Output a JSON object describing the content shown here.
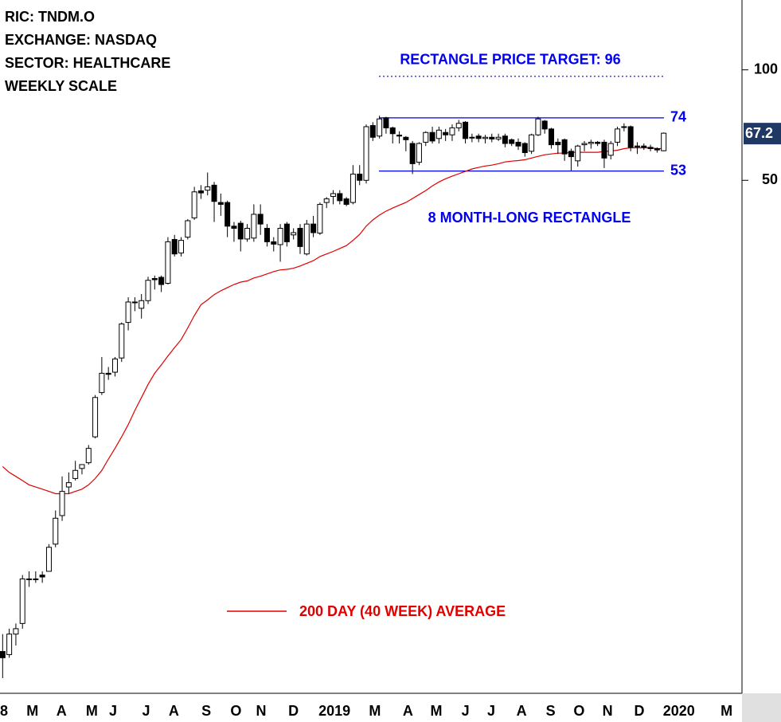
{
  "chart_data": {
    "type": "candlestick",
    "annotations": [
      "RIC: TNDM.O",
      "EXCHANGE: NASDAQ",
      "SECTOR: HEALTHCARE",
      "WEEKLY SCALE"
    ],
    "pattern_label": "8 MONTH-LONG RECTANGLE",
    "target": {
      "value": 96,
      "label": "RECTANGLE PRICE TARGET: 96"
    },
    "levels": [
      74,
      53
    ],
    "level_color": "#0000ee",
    "last_price": 67.2,
    "log_scale": true,
    "ylim": [
      2,
      155
    ],
    "yticks": [
      50,
      100
    ],
    "xlim": [
      3.6,
      115.6
    ],
    "xticks": [
      {
        "value": 4.2,
        "label": "8"
      },
      {
        "value": 8.5,
        "label": "M"
      },
      {
        "value": 12.9,
        "label": "A"
      },
      {
        "value": 17.5,
        "label": "M"
      },
      {
        "value": 20.7,
        "label": "J"
      },
      {
        "value": 25.7,
        "label": "J"
      },
      {
        "value": 29.9,
        "label": "A"
      },
      {
        "value": 34.8,
        "label": "S"
      },
      {
        "value": 39.3,
        "label": "O"
      },
      {
        "value": 43.1,
        "label": "N"
      },
      {
        "value": 48,
        "label": "D"
      },
      {
        "value": 54.2,
        "label": "2019"
      },
      {
        "value": 60.3,
        "label": "M"
      },
      {
        "value": 65.3,
        "label": "A"
      },
      {
        "value": 69.6,
        "label": "M"
      },
      {
        "value": 74,
        "label": "J"
      },
      {
        "value": 77.9,
        "label": "J"
      },
      {
        "value": 82.5,
        "label": "A"
      },
      {
        "value": 86.9,
        "label": "S"
      },
      {
        "value": 91.2,
        "label": "O"
      },
      {
        "value": 95.5,
        "label": "N"
      },
      {
        "value": 100.3,
        "label": "D"
      },
      {
        "value": 106.3,
        "label": "2020"
      },
      {
        "value": 113.5,
        "label": "M"
      }
    ],
    "up_color": "#ffffff",
    "down_color": "#000000",
    "x": [
      4,
      5,
      6,
      7,
      8,
      9,
      10,
      11,
      12,
      13,
      14,
      15,
      16,
      17,
      18,
      19,
      20,
      21,
      22,
      23,
      24,
      25,
      26,
      27,
      28,
      29,
      30,
      31,
      32,
      33,
      34,
      35,
      36,
      37,
      38,
      39,
      40,
      41,
      42,
      43,
      44,
      45,
      46,
      47,
      48,
      49,
      50,
      51,
      52,
      53,
      54,
      55,
      56,
      57,
      58,
      59,
      60,
      61,
      62,
      63,
      64,
      65,
      66,
      67,
      68,
      69,
      70,
      71,
      72,
      73,
      74,
      75,
      76,
      77,
      78,
      79,
      80,
      81,
      82,
      83,
      84,
      85,
      86,
      87,
      88,
      89,
      90,
      91,
      92,
      93,
      94,
      95,
      96,
      97,
      98,
      99,
      100,
      101,
      102,
      103,
      104
    ],
    "open": [
      2.6,
      2.55,
      2.9,
      3.1,
      4.1,
      4.1,
      4.2,
      4.3,
      5.1,
      6.1,
      7.3,
      7.7,
      8.2,
      8.5,
      10.0,
      13.2,
      14.9,
      15.0,
      16.4,
      20.5,
      23.3,
      22.4,
      23.5,
      27.0,
      27.2,
      26.2,
      34.5,
      31.7,
      35.0,
      39.5,
      46.8,
      47.0,
      48.5,
      43.5,
      43.5,
      37.5,
      38.2,
      34.6,
      34.8,
      40.4,
      37.0,
      34.0,
      33.4,
      38.0,
      35.5,
      37.0,
      31.5,
      38.0,
      35.9,
      43.5,
      45.2,
      46.0,
      44.5,
      43.5,
      52.0,
      50.0,
      70.5,
      66.0,
      74.0,
      69.5,
      66.4,
      65.5,
      63.0,
      56.0,
      63.5,
      67.5,
      65.0,
      67.5,
      66.5,
      69.5,
      72.0,
      65.5,
      66.0,
      65.0,
      65.5,
      64.8,
      66.0,
      64.5,
      63.5,
      63.0,
      60.0,
      66.5,
      72.5,
      69.0,
      63.5,
      64.5,
      60.0,
      56.5,
      62.5,
      63.0,
      63.5,
      63.5,
      58.5,
      63.5,
      70.0,
      70.0,
      62.0,
      62.0,
      61.5,
      61.0,
      60.2
    ],
    "high": [
      2.9,
      3.0,
      3.1,
      4.2,
      4.3,
      4.3,
      4.3,
      5.1,
      6.3,
      7.8,
      8.0,
      8.6,
      8.4,
      9.5,
      13.0,
      16.5,
      15.5,
      16.5,
      20.5,
      24.0,
      24.0,
      24.5,
      27.3,
      27.5,
      27.5,
      35.0,
      35.5,
      35.0,
      39.2,
      48.0,
      48.5,
      52.5,
      49.5,
      46.0,
      44.0,
      38.5,
      38.8,
      38.0,
      43.0,
      43.0,
      38.0,
      35.0,
      38.0,
      38.5,
      37.0,
      38.0,
      39.0,
      40.0,
      43.5,
      45.0,
      47.0,
      47.0,
      45.0,
      55.0,
      55.0,
      71.0,
      72.0,
      75.0,
      74.5,
      70.0,
      68.0,
      66.0,
      64.0,
      63.5,
      68.0,
      70.0,
      70.0,
      69.0,
      71.0,
      73.0,
      72.5,
      67.0,
      67.0,
      66.5,
      67.0,
      67.0,
      67.0,
      65.0,
      65.0,
      63.5,
      67.0,
      74.5,
      73.0,
      69.5,
      65.0,
      65.0,
      61.0,
      62.5,
      64.0,
      64.5,
      64.0,
      64.5,
      64.0,
      70.0,
      71.5,
      70.5,
      63.5,
      63.0,
      62.5,
      61.5,
      67.5
    ],
    "low": [
      2.2,
      2.5,
      2.7,
      3.0,
      3.9,
      4.0,
      4.0,
      4.3,
      5.0,
      5.9,
      7.0,
      7.6,
      7.9,
      8.4,
      9.9,
      13.0,
      14.3,
      14.6,
      16.0,
      19.5,
      22.0,
      21.0,
      23.0,
      25.2,
      24.8,
      26.0,
      31.0,
      31.0,
      34.5,
      39.0,
      44.5,
      45.5,
      38.5,
      40.0,
      35.0,
      34.0,
      32.0,
      34.0,
      34.0,
      35.5,
      33.0,
      32.0,
      30.0,
      33.0,
      34.5,
      31.5,
      31.2,
      35.0,
      35.5,
      42.0,
      43.0,
      43.0,
      42.5,
      43.0,
      48.5,
      49.0,
      64.0,
      65.0,
      67.0,
      63.0,
      63.0,
      60.0,
      52.0,
      55.0,
      62.0,
      63.0,
      63.0,
      64.0,
      64.0,
      68.0,
      63.0,
      63.5,
      63.5,
      63.0,
      63.5,
      64.0,
      61.5,
      62.0,
      60.5,
      58.0,
      59.0,
      66.0,
      67.0,
      61.0,
      59.0,
      56.5,
      53.0,
      54.5,
      60.0,
      61.0,
      62.0,
      54.0,
      57.0,
      62.0,
      68.0,
      60.0,
      59.0,
      60.5,
      60.0,
      59.5,
      60.0
    ],
    "close": [
      2.5,
      2.9,
      3.0,
      4.1,
      4.1,
      4.1,
      4.15,
      5.0,
      6.0,
      7.1,
      7.5,
      8.1,
      8.4,
      9.3,
      12.8,
      14.9,
      14.8,
      16.3,
      20.3,
      23.3,
      23.2,
      23.5,
      26.7,
      26.8,
      26.0,
      34.0,
      31.5,
      34.3,
      38.8,
      46.5,
      46.2,
      48.0,
      43.8,
      43.0,
      37.5,
      37.0,
      34.6,
      37.0,
      40.4,
      38.0,
      34.0,
      33.5,
      37.0,
      34.0,
      36.0,
      33.0,
      38.0,
      36.0,
      43.0,
      44.5,
      46.0,
      44.0,
      43.0,
      52.0,
      50.0,
      70.0,
      65.5,
      73.5,
      69.5,
      67.0,
      66.0,
      64.5,
      55.5,
      63.0,
      67.5,
      64.0,
      68.5,
      66.5,
      69.5,
      71.5,
      65.0,
      65.5,
      65.0,
      65.5,
      64.8,
      65.5,
      63.0,
      63.0,
      62.0,
      59.5,
      66.5,
      73.5,
      69.0,
      62.5,
      62.5,
      59.0,
      58.0,
      62.0,
      63.0,
      63.5,
      63.0,
      57.5,
      63.0,
      69.0,
      70.0,
      61.5,
      62.0,
      61.5,
      61.0,
      60.5,
      67.2
    ],
    "series": [
      {
        "name": "200 DAY (40 WEEK) AVERAGE",
        "color": "#e00000",
        "values": [
          8.3,
          8.0,
          7.8,
          7.6,
          7.4,
          7.3,
          7.2,
          7.1,
          7.0,
          7.0,
          7.0,
          7.1,
          7.2,
          7.4,
          7.7,
          8.1,
          8.7,
          9.3,
          10.0,
          10.8,
          11.8,
          12.8,
          13.9,
          14.9,
          15.7,
          16.6,
          17.5,
          18.4,
          19.8,
          21.4,
          22.9,
          23.6,
          24.4,
          25.0,
          25.5,
          26.0,
          26.4,
          26.6,
          27.1,
          27.4,
          27.8,
          28.2,
          28.5,
          28.6,
          28.8,
          29.2,
          29.7,
          30.2,
          31.0,
          31.5,
          32.0,
          32.6,
          33.2,
          34.3,
          35.6,
          37.5,
          39.0,
          40.2,
          41.2,
          42.0,
          42.8,
          43.5,
          44.6,
          45.7,
          46.9,
          48.3,
          49.5,
          50.5,
          51.3,
          52.1,
          52.9,
          53.7,
          54.2,
          54.7,
          55.0,
          55.5,
          56.1,
          56.4,
          56.6,
          56.9,
          57.5,
          58.1,
          58.7,
          59.0,
          59.3,
          59.3,
          59.6,
          59.6,
          59.6,
          59.6,
          59.6,
          59.9,
          60.1,
          60.4,
          61.0,
          61.3,
          61.3,
          61.3,
          61.3,
          61.0,
          61.0
        ]
      }
    ]
  }
}
